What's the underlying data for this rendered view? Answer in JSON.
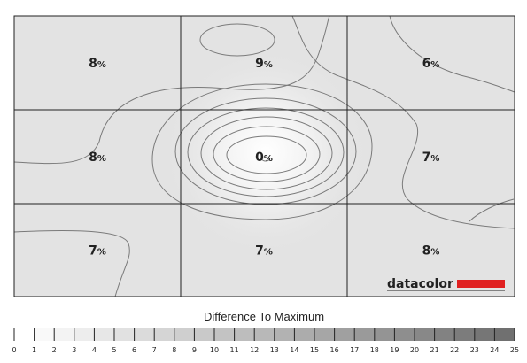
{
  "chart_data": {
    "type": "heatmap",
    "rows": 3,
    "cols": 3,
    "values": [
      [
        8,
        9,
        6
      ],
      [
        8,
        0,
        7
      ],
      [
        7,
        7,
        8
      ]
    ],
    "labels": [
      [
        "8%",
        "9%",
        "6%"
      ],
      [
        "8%",
        "0%",
        "7%"
      ],
      [
        "7%",
        "7%",
        "8%"
      ]
    ],
    "colorbar": {
      "title": "Difference To Maximum",
      "min": 0,
      "max": 25,
      "ticks": [
        "0",
        "1",
        "2",
        "3",
        "4",
        "5",
        "6",
        "7",
        "8",
        "9",
        "10",
        "11",
        "12",
        "13",
        "14",
        "15",
        "16",
        "17",
        "18",
        "19",
        "20",
        "21",
        "22",
        "23",
        "24",
        "25"
      ]
    },
    "logo": {
      "text": "datacolor",
      "bar_color": "#e02020"
    }
  }
}
